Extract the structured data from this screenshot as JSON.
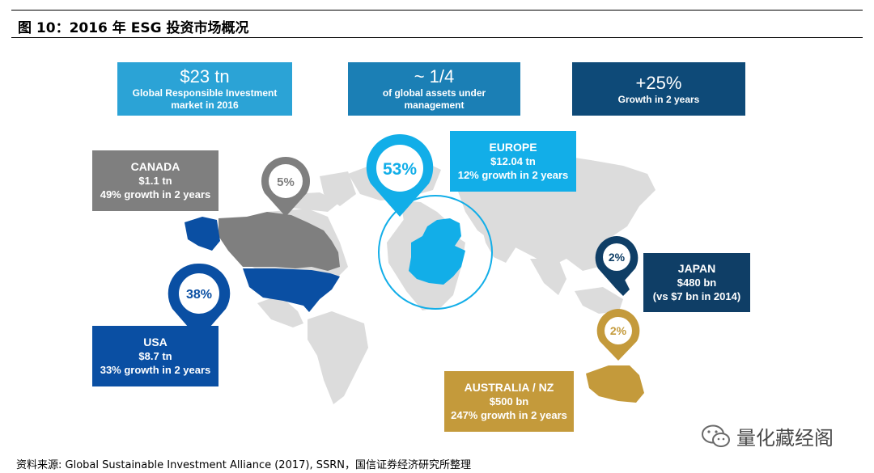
{
  "figure_title": "图 10：2016 年 ESG 投资市场概况",
  "stats": [
    {
      "big": "$23 tn",
      "small": "Global Responsible Investment market in 2016",
      "color": "#2ba3d6"
    },
    {
      "big": "~ 1/4",
      "small": "of global assets under management",
      "color": "#1b7fb5"
    },
    {
      "big": "+25%",
      "small": "Growth in 2 years",
      "color": "#0e4a78"
    }
  ],
  "regions": {
    "canada": {
      "name": "CANADA",
      "amount": "$1.1 tn",
      "growth": "49% growth in 2 years",
      "share": "5%",
      "color": "#7f7f7f"
    },
    "europe": {
      "name": "EUROPE",
      "amount": "$12.04 tn",
      "growth": "12% growth in 2 years",
      "share": "53%",
      "color": "#12aee8"
    },
    "usa": {
      "name": "USA",
      "amount": "$8.7 tn",
      "growth": "33% growth  in 2 years",
      "share": "38%",
      "color": "#0a4fa3"
    },
    "japan": {
      "name": "JAPAN",
      "amount": "$480 bn",
      "growth": "(vs $7 bn in 2014)",
      "share": "2%",
      "color": "#0f3e66"
    },
    "australia": {
      "name": "AUSTRALIA / NZ",
      "amount": "$500 bn",
      "growth": "247% growth in 2 years",
      "share": "2%",
      "color": "#c49a3b"
    }
  },
  "source": "资料来源: Global Sustainable Investment Alliance (2017), SSRN，国信证券经济研究所整理",
  "watermark": "量化藏经阁",
  "icons": {
    "watermark": "wechat-icon",
    "pins": "location-pin-icon"
  }
}
